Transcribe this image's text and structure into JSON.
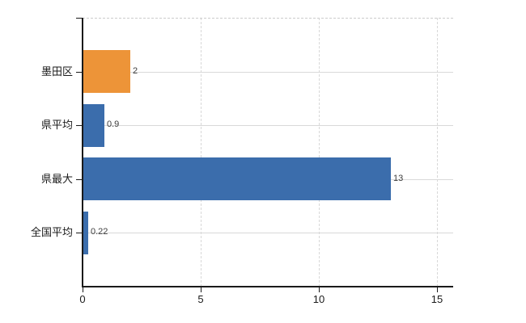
{
  "chart_data": {
    "type": "bar",
    "orientation": "horizontal",
    "title": "",
    "categories": [
      "墨田区",
      "県平均",
      "県最大",
      "全国平均"
    ],
    "values": [
      2,
      0.9,
      13,
      0.22
    ],
    "value_labels": [
      "2",
      "0.9",
      "13",
      "0.22"
    ],
    "bar_colors": [
      "#ED9438",
      "#3B6DAC",
      "#3B6DAC",
      "#3B6DAC"
    ],
    "x_tick_values": [
      0,
      5,
      10,
      15
    ],
    "x_tick_labels": [
      "0",
      "5",
      "10",
      "15"
    ],
    "xlim": [
      0,
      15
    ],
    "grid": true,
    "legend": false,
    "colors": {
      "highlight_bar": "#ED9438",
      "default_bar": "#3B6DAC",
      "axis_line": "#1a1a1a",
      "horizontal_gridline": "#d9d9d9",
      "vertical_gridline": "#d8d8d8",
      "top_border": "#cccccc",
      "value_label_text": "#3d3d3d",
      "tick_label_text": "#1a1a1a",
      "background": "#ffffff"
    }
  }
}
